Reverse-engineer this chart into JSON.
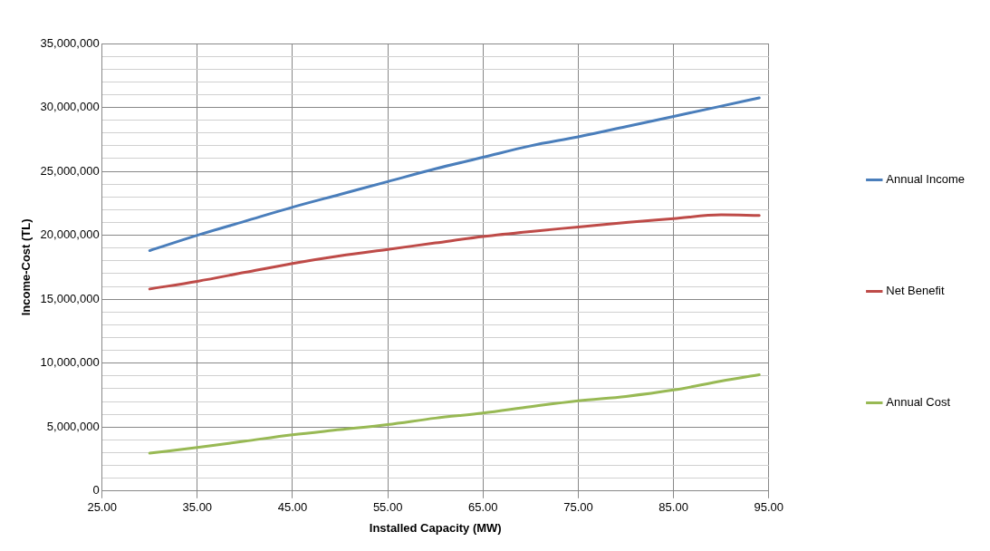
{
  "chart_data": {
    "type": "line",
    "xlabel": "Installed Capacity (MW)",
    "ylabel": "Income-Cost (TL)",
    "x": [
      30,
      35,
      40,
      45,
      50,
      55,
      60,
      65,
      70,
      75,
      80,
      85,
      90,
      94
    ],
    "series": [
      {
        "name": "Annual Income",
        "color": "#4a7ebb",
        "values": [
          18800000,
          20000000,
          21100000,
          22200000,
          23200000,
          24200000,
          25200000,
          26100000,
          27000000,
          27700000,
          28500000,
          29300000,
          30100000,
          30750000
        ]
      },
      {
        "name": "Net Benefit",
        "color": "#be4b48",
        "values": [
          15800000,
          16400000,
          17100000,
          17800000,
          18400000,
          18900000,
          19400000,
          19900000,
          20300000,
          20650000,
          21000000,
          21300000,
          21600000,
          21550000
        ]
      },
      {
        "name": "Annual Cost",
        "color": "#98b954",
        "values": [
          2960000,
          3400000,
          3900000,
          4400000,
          4800000,
          5200000,
          5700000,
          6100000,
          6600000,
          7060000,
          7400000,
          7900000,
          8600000,
          9100000
        ]
      }
    ],
    "xlim": [
      25,
      95
    ],
    "xticks": [
      {
        "value": 25,
        "label": "25.00"
      },
      {
        "value": 35,
        "label": "35.00"
      },
      {
        "value": 45,
        "label": "45.00"
      },
      {
        "value": 55,
        "label": "55.00"
      },
      {
        "value": 65,
        "label": "65.00"
      },
      {
        "value": 75,
        "label": "75.00"
      },
      {
        "value": 85,
        "label": "85.00"
      },
      {
        "value": 95,
        "label": "95.00"
      }
    ],
    "ylim": [
      0,
      35000000
    ],
    "yticks": [
      0,
      {
        "value": 1000000,
        "label": null
      },
      {
        "value": 2000000,
        "label": null
      },
      {
        "value": 3000000,
        "label": null
      },
      {
        "value": 4000000,
        "label": null
      },
      {
        "value": 5000000,
        "label": "5,000,000"
      },
      {
        "value": 6000000,
        "label": null
      },
      {
        "value": 7000000,
        "label": null
      },
      {
        "value": 8000000,
        "label": null
      },
      {
        "value": 9000000,
        "label": null
      },
      {
        "value": 10000000,
        "label": "10,000,000"
      },
      {
        "value": 11000000,
        "label": null
      },
      {
        "value": 12000000,
        "label": null
      },
      {
        "value": 13000000,
        "label": null
      },
      {
        "value": 14000000,
        "label": null
      },
      {
        "value": 15000000,
        "label": "15,000,000"
      },
      {
        "value": 16000000,
        "label": null
      },
      {
        "value": 17000000,
        "label": null
      },
      {
        "value": 18000000,
        "label": null
      },
      {
        "value": 19000000,
        "label": null
      },
      {
        "value": 20000000,
        "label": "20,000,000"
      },
      {
        "value": 21000000,
        "label": null
      },
      {
        "value": 22000000,
        "label": null
      },
      {
        "value": 23000000,
        "label": null
      },
      {
        "value": 24000000,
        "label": null
      },
      {
        "value": 25000000,
        "label": "25,000,000"
      },
      {
        "value": 26000000,
        "label": null
      },
      {
        "value": 27000000,
        "label": null
      },
      {
        "value": 28000000,
        "label": null
      },
      {
        "value": 29000000,
        "label": null
      },
      {
        "value": 30000000,
        "label": "30,000,000"
      },
      {
        "value": 31000000,
        "label": null
      },
      {
        "value": 32000000,
        "label": null
      },
      {
        "value": 33000000,
        "label": null
      },
      {
        "value": 34000000,
        "label": null
      },
      {
        "value": 35000000,
        "label": "35,000,000"
      }
    ],
    "grid": true,
    "legend": "right",
    "marker": "none",
    "line_style": "solid"
  }
}
